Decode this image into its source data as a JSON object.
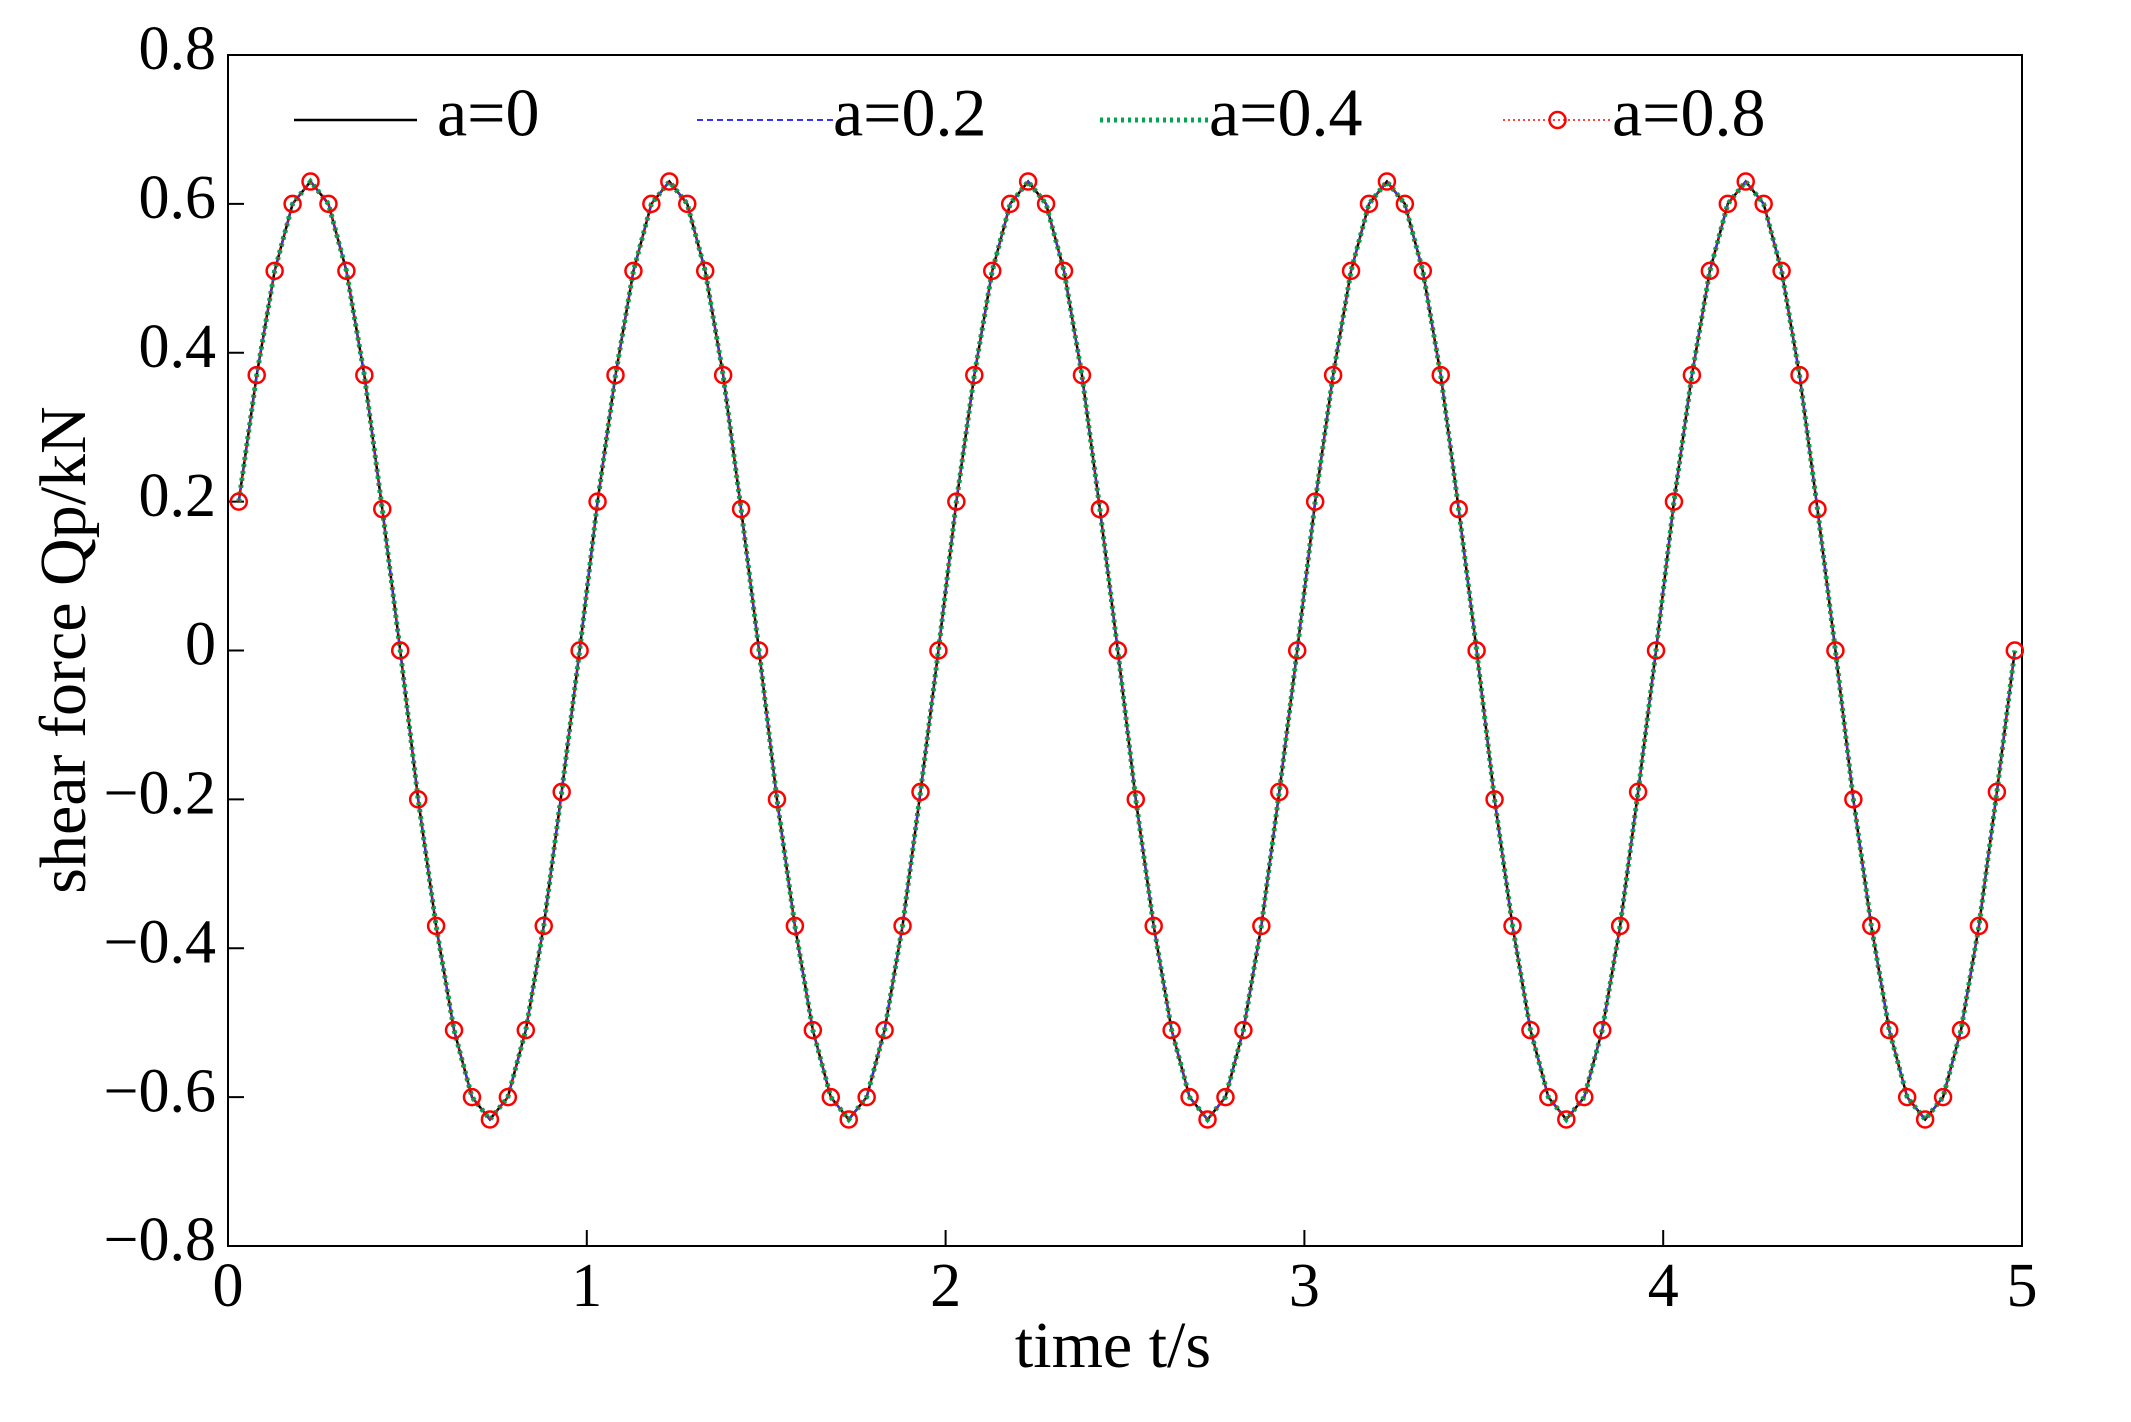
{
  "chart_data": {
    "type": "line",
    "xlabel": "time t/s",
    "ylabel": "shear force Qp/kN",
    "x": [
      0.03,
      0.08,
      0.13,
      0.18,
      0.23,
      0.28,
      0.33,
      0.38,
      0.43,
      0.48,
      0.53,
      0.58,
      0.63,
      0.68,
      0.73,
      0.78,
      0.83,
      0.88,
      0.93,
      0.98,
      1.03,
      1.08,
      1.13,
      1.18,
      1.23,
      1.28,
      1.33,
      1.38,
      1.43,
      1.48,
      1.53,
      1.58,
      1.63,
      1.68,
      1.73,
      1.78,
      1.83,
      1.88,
      1.93,
      1.98,
      2.03,
      2.08,
      2.13,
      2.18,
      2.23,
      2.28,
      2.33,
      2.38,
      2.43,
      2.48,
      2.53,
      2.58,
      2.63,
      2.68,
      2.73,
      2.78,
      2.83,
      2.88,
      2.93,
      2.98,
      3.03,
      3.08,
      3.13,
      3.18,
      3.23,
      3.28,
      3.33,
      3.38,
      3.43,
      3.48,
      3.53,
      3.58,
      3.63,
      3.68,
      3.73,
      3.78,
      3.83,
      3.88,
      3.93,
      3.98,
      4.03,
      4.08,
      4.13,
      4.18,
      4.23,
      4.28,
      4.33,
      4.38,
      4.43,
      4.48,
      4.53,
      4.58,
      4.63,
      4.68,
      4.73,
      4.78,
      4.83,
      4.88,
      4.93,
      4.98
    ],
    "series": [
      {
        "name": "a=0",
        "color": "#000000",
        "style": "solid",
        "values": [
          0.2,
          0.37,
          0.51,
          0.6,
          0.63,
          0.6,
          0.51,
          0.37,
          0.19,
          0,
          -0.2,
          -0.37,
          -0.51,
          -0.6,
          -0.63,
          -0.6,
          -0.51,
          -0.37,
          -0.19,
          0,
          0.2,
          0.37,
          0.51,
          0.6,
          0.63,
          0.6,
          0.51,
          0.37,
          0.19,
          0,
          -0.2,
          -0.37,
          -0.51,
          -0.6,
          -0.63,
          -0.6,
          -0.51,
          -0.37,
          -0.19,
          0,
          0.2,
          0.37,
          0.51,
          0.6,
          0.63,
          0.6,
          0.51,
          0.37,
          0.19,
          0,
          -0.2,
          -0.37,
          -0.51,
          -0.6,
          -0.63,
          -0.6,
          -0.51,
          -0.37,
          -0.19,
          0,
          0.2,
          0.37,
          0.51,
          0.6,
          0.63,
          0.6,
          0.51,
          0.37,
          0.19,
          0,
          -0.2,
          -0.37,
          -0.51,
          -0.6,
          -0.63,
          -0.6,
          -0.51,
          -0.37,
          -0.19,
          0,
          0.2,
          0.37,
          0.51,
          0.6,
          0.63,
          0.6,
          0.51,
          0.37,
          0.19,
          0,
          -0.2,
          -0.37,
          -0.51,
          -0.6,
          -0.63,
          -0.6,
          -0.51,
          -0.37,
          -0.19,
          0
        ]
      },
      {
        "name": "a=0.2",
        "color": "#3333ff",
        "style": "dashed",
        "values": [
          0.2,
          0.37,
          0.51,
          0.6,
          0.63,
          0.6,
          0.51,
          0.37,
          0.19,
          0,
          -0.2,
          -0.37,
          -0.51,
          -0.6,
          -0.63,
          -0.6,
          -0.51,
          -0.37,
          -0.19,
          0,
          0.2,
          0.37,
          0.51,
          0.6,
          0.63,
          0.6,
          0.51,
          0.37,
          0.19,
          0,
          -0.2,
          -0.37,
          -0.51,
          -0.6,
          -0.63,
          -0.6,
          -0.51,
          -0.37,
          -0.19,
          0,
          0.2,
          0.37,
          0.51,
          0.6,
          0.63,
          0.6,
          0.51,
          0.37,
          0.19,
          0,
          -0.2,
          -0.37,
          -0.51,
          -0.6,
          -0.63,
          -0.6,
          -0.51,
          -0.37,
          -0.19,
          0,
          0.2,
          0.37,
          0.51,
          0.6,
          0.63,
          0.6,
          0.51,
          0.37,
          0.19,
          0,
          -0.2,
          -0.37,
          -0.51,
          -0.6,
          -0.63,
          -0.6,
          -0.51,
          -0.37,
          -0.19,
          0,
          0.2,
          0.37,
          0.51,
          0.6,
          0.63,
          0.6,
          0.51,
          0.37,
          0.19,
          0,
          -0.2,
          -0.37,
          -0.51,
          -0.6,
          -0.63,
          -0.6,
          -0.51,
          -0.37,
          -0.19,
          0
        ]
      },
      {
        "name": "a=0.4",
        "color": "#00a651",
        "style": "dotted",
        "values": [
          0.2,
          0.37,
          0.51,
          0.6,
          0.63,
          0.6,
          0.51,
          0.37,
          0.19,
          0,
          -0.2,
          -0.37,
          -0.51,
          -0.6,
          -0.63,
          -0.6,
          -0.51,
          -0.37,
          -0.19,
          0,
          0.2,
          0.37,
          0.51,
          0.6,
          0.63,
          0.6,
          0.51,
          0.37,
          0.19,
          0,
          -0.2,
          -0.37,
          -0.51,
          -0.6,
          -0.63,
          -0.6,
          -0.51,
          -0.37,
          -0.19,
          0,
          0.2,
          0.37,
          0.51,
          0.6,
          0.63,
          0.6,
          0.51,
          0.37,
          0.19,
          0,
          -0.2,
          -0.37,
          -0.51,
          -0.6,
          -0.63,
          -0.6,
          -0.51,
          -0.37,
          -0.19,
          0,
          0.2,
          0.37,
          0.51,
          0.6,
          0.63,
          0.6,
          0.51,
          0.37,
          0.19,
          0,
          -0.2,
          -0.37,
          -0.51,
          -0.6,
          -0.63,
          -0.6,
          -0.51,
          -0.37,
          -0.19,
          0,
          0.2,
          0.37,
          0.51,
          0.6,
          0.63,
          0.6,
          0.51,
          0.37,
          0.19,
          0,
          -0.2,
          -0.37,
          -0.51,
          -0.6,
          -0.63,
          -0.6,
          -0.51,
          -0.37,
          -0.19,
          0
        ]
      },
      {
        "name": "a=0.8",
        "color": "#ff0000",
        "style": "marker",
        "values": [
          0.2,
          0.37,
          0.51,
          0.6,
          0.63,
          0.6,
          0.51,
          0.37,
          0.19,
          0,
          -0.2,
          -0.37,
          -0.51,
          -0.6,
          -0.63,
          -0.6,
          -0.51,
          -0.37,
          -0.19,
          0,
          0.2,
          0.37,
          0.51,
          0.6,
          0.63,
          0.6,
          0.51,
          0.37,
          0.19,
          0,
          -0.2,
          -0.37,
          -0.51,
          -0.6,
          -0.63,
          -0.6,
          -0.51,
          -0.37,
          -0.19,
          0,
          0.2,
          0.37,
          0.51,
          0.6,
          0.63,
          0.6,
          0.51,
          0.37,
          0.19,
          0,
          -0.2,
          -0.37,
          -0.51,
          -0.6,
          -0.63,
          -0.6,
          -0.51,
          -0.37,
          -0.19,
          0,
          0.2,
          0.37,
          0.51,
          0.6,
          0.63,
          0.6,
          0.51,
          0.37,
          0.19,
          0,
          -0.2,
          -0.37,
          -0.51,
          -0.6,
          -0.63,
          -0.6,
          -0.51,
          -0.37,
          -0.19,
          0,
          0.2,
          0.37,
          0.51,
          0.6,
          0.63,
          0.6,
          0.51,
          0.37,
          0.19,
          0,
          -0.2,
          -0.37,
          -0.51,
          -0.6,
          -0.63,
          -0.6,
          -0.51,
          -0.37,
          -0.19,
          0
        ]
      }
    ],
    "xlim": [
      0,
      5
    ],
    "xticks": [
      0,
      1,
      2,
      3,
      4,
      5
    ],
    "ylim": [
      -0.8,
      0.8
    ],
    "yticks": [
      {
        "value": -0.8,
        "label": "−0.8"
      },
      {
        "value": -0.6,
        "label": "−0.6"
      },
      {
        "value": -0.4,
        "label": "−0.4"
      },
      {
        "value": -0.2,
        "label": "−0.2"
      },
      0,
      0.2,
      0.4,
      0.6,
      0.8
    ],
    "legend": "top"
  }
}
